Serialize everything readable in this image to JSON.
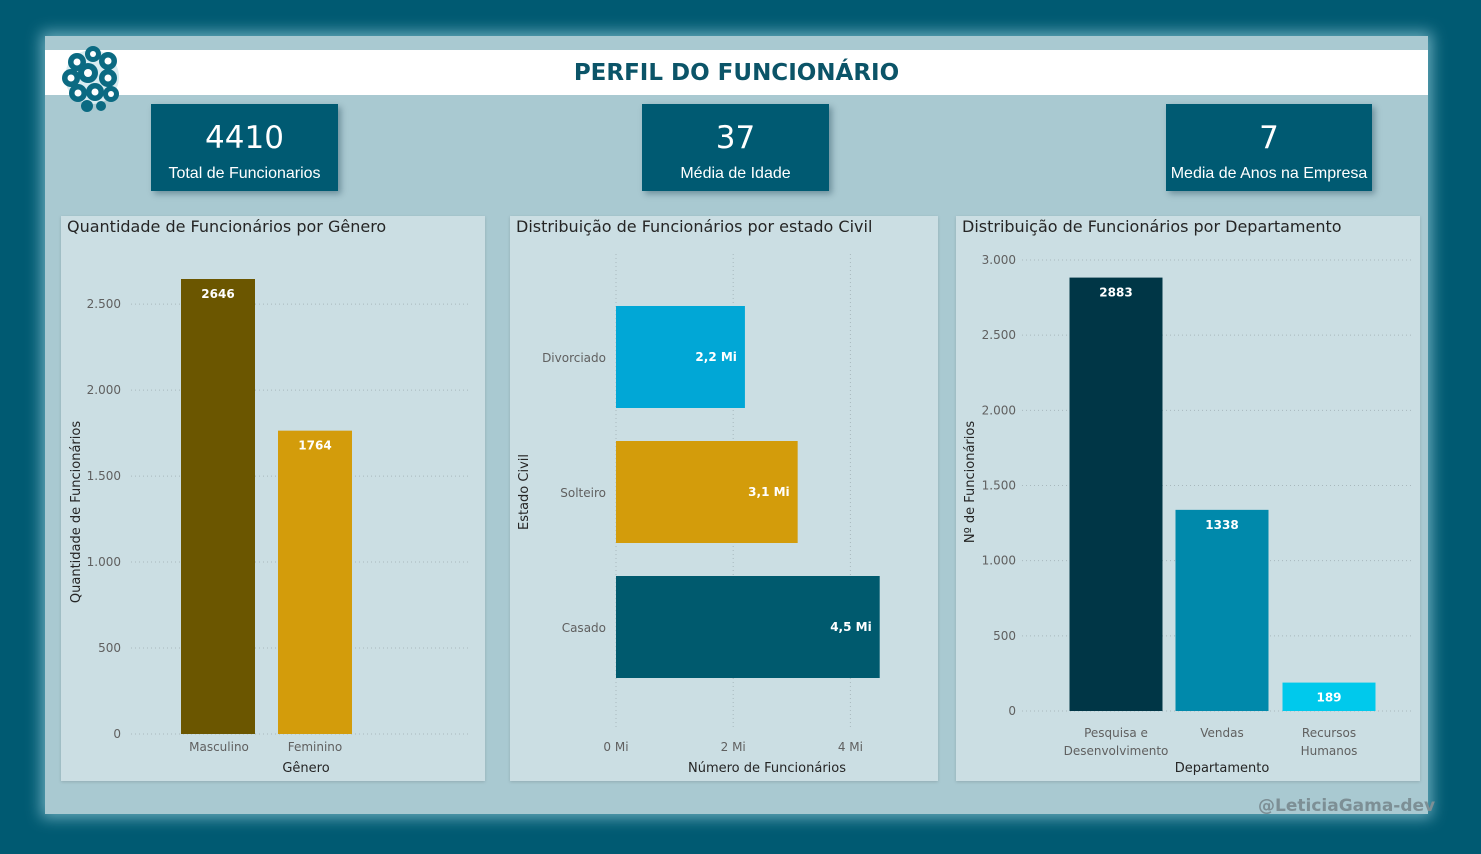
{
  "header": {
    "title": "PERFIL DO FUNCIONÁRIO"
  },
  "kpis": [
    {
      "value": "4410",
      "label": "Total de Funcionarios"
    },
    {
      "value": "37",
      "label": "Média de Idade"
    },
    {
      "value": "7",
      "label": "Media de Anos na Empresa"
    }
  ],
  "colors": {
    "background": "#005a72",
    "canvas": "#a9c9d1",
    "panel": "#cbdee3",
    "kpi": "#005a72",
    "title": "#0b5468"
  },
  "chart_data": [
    {
      "type": "bar",
      "title": "Quantidade de Funcionários por Gênero",
      "categories": [
        "Masculino",
        "Feminino"
      ],
      "values": [
        2646,
        1764
      ],
      "data_labels": [
        "2646",
        "1764"
      ],
      "colors": [
        "#6b5600",
        "#d39c0b"
      ],
      "xlabel": "Gênero",
      "ylabel": "Quantidade de Funcionários",
      "ylim": [
        0,
        2646
      ],
      "yticks": [
        0,
        500,
        1000,
        1500,
        2000,
        2500
      ],
      "ytick_labels": [
        "0",
        "500",
        "1.000",
        "1.500",
        "2.000",
        "2.500"
      ]
    },
    {
      "type": "bar",
      "orientation": "horizontal",
      "title": "Distribuição de Funcionários por estado Civil",
      "categories": [
        "Divorciado",
        "Solteiro",
        "Casado"
      ],
      "values": [
        2.2,
        3.1,
        4.5
      ],
      "data_labels": [
        "2,2 Mi",
        "3,1 Mi",
        "4,5 Mi"
      ],
      "colors": [
        "#01a7d6",
        "#d39c0b",
        "#005a6e"
      ],
      "xlabel": "Número de Funcionários",
      "ylabel": "Estado Civil",
      "xlim": [
        0,
        4.5
      ],
      "xticks": [
        0,
        2,
        4
      ],
      "xtick_labels": [
        "0 Mi",
        "2 Mi",
        "4 Mi"
      ]
    },
    {
      "type": "bar",
      "title": "Distribuição de Funcionários por Departamento",
      "categories": [
        [
          "Pesquisa e",
          "Desenvolvimento"
        ],
        [
          "Vendas"
        ],
        [
          "Recursos",
          "Humanos"
        ]
      ],
      "values": [
        2883,
        1338,
        189
      ],
      "data_labels": [
        "2883",
        "1338",
        "189"
      ],
      "colors": [
        "#003646",
        "#0089ab",
        "#00c9ec"
      ],
      "xlabel": "Departamento",
      "ylabel": "Nº de Funcionários",
      "ylim": [
        0,
        3000
      ],
      "yticks": [
        0,
        500,
        1000,
        1500,
        2000,
        2500,
        3000
      ],
      "ytick_labels": [
        "0",
        "500",
        "1.000",
        "1.500",
        "2.000",
        "2.500",
        "3.000"
      ]
    }
  ],
  "footer": {
    "watermark": "@LeticiaGama-dev"
  }
}
